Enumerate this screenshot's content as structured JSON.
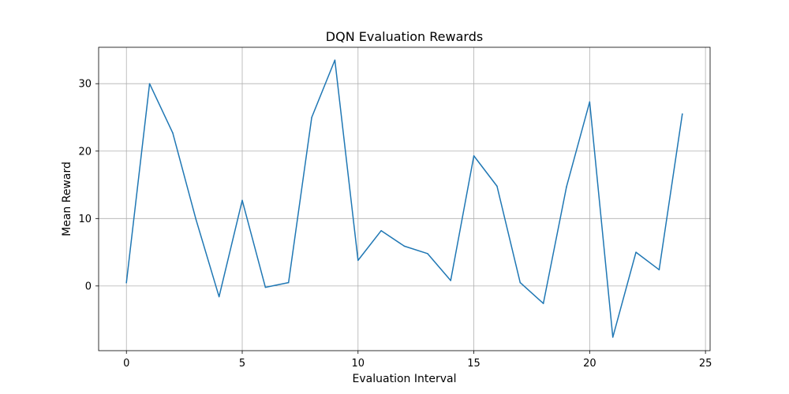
{
  "chart_data": {
    "type": "line",
    "title": "DQN Evaluation Rewards",
    "xlabel": "Evaluation Interval",
    "ylabel": "Mean Reward",
    "xlim": [
      -1.2,
      25.2
    ],
    "ylim": [
      -9.6,
      35.4
    ],
    "xticks": [
      0,
      5,
      10,
      15,
      20,
      25
    ],
    "yticks": [
      0,
      10,
      20,
      30
    ],
    "grid": true,
    "series": [
      {
        "color": "#1f77b4",
        "x": [
          0,
          1,
          2,
          3,
          4,
          5,
          6,
          7,
          8,
          9,
          10,
          11,
          12,
          13,
          14,
          15,
          16,
          17,
          18,
          19,
          20,
          21,
          22,
          23,
          24
        ],
        "values": [
          0.5,
          30.0,
          22.7,
          9.9,
          -1.6,
          12.7,
          -0.2,
          0.5,
          25.0,
          33.5,
          3.8,
          8.2,
          5.9,
          4.8,
          0.8,
          19.3,
          14.8,
          0.5,
          -2.6,
          14.7,
          27.3,
          -7.6,
          5.0,
          2.4,
          25.5
        ]
      }
    ]
  }
}
